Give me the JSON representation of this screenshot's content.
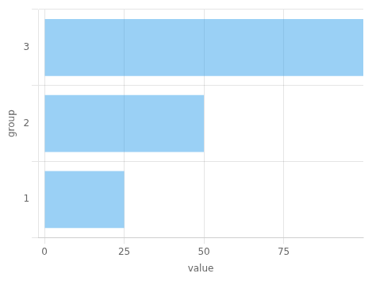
{
  "chart_data": {
    "type": "bar",
    "orientation": "horizontal",
    "categories": [
      "1",
      "2",
      "3"
    ],
    "values": [
      25,
      50,
      100
    ],
    "xlabel": "value",
    "ylabel": "group",
    "xlim": [
      -2,
      100
    ],
    "xticks": [
      0,
      25,
      50,
      75
    ],
    "grid": true
  }
}
